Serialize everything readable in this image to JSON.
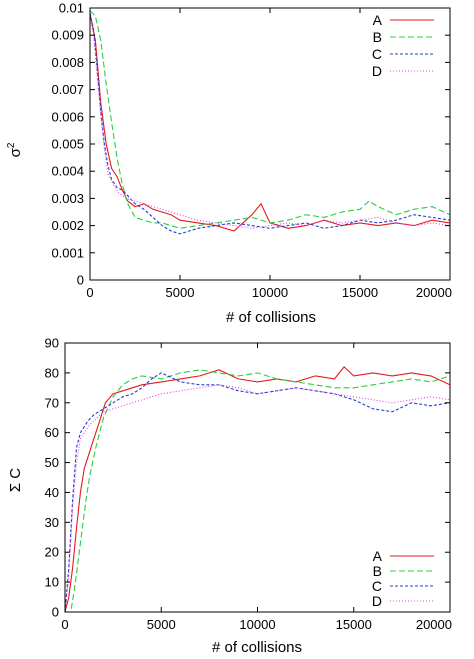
{
  "chart_data": [
    {
      "type": "line",
      "xlabel": "# of collisions",
      "ylabel": "σ",
      "ylabel_sup": "2",
      "xlim": [
        0,
        20000
      ],
      "ylim": [
        0,
        0.01
      ],
      "xticks": [
        0,
        5000,
        10000,
        15000,
        20000
      ],
      "yticks": [
        0,
        0.001,
        0.002,
        0.003,
        0.004,
        0.005,
        0.006,
        0.007,
        0.008,
        0.009,
        0.01
      ],
      "ytick_labels": [
        "0",
        "0.001",
        "0.002",
        "0.003",
        "0.004",
        "0.005",
        "0.006",
        "0.007",
        "0.008",
        "0.009",
        "0.01"
      ],
      "legend_position": "top-right",
      "series": [
        {
          "name": "A",
          "color": "#e41a1c",
          "dash": "solid",
          "x": [
            0,
            300,
            600,
            900,
            1200,
            1500,
            1800,
            2100,
            2500,
            3000,
            3500,
            4000,
            4500,
            5000,
            6000,
            7000,
            8000,
            9000,
            9500,
            10000,
            11000,
            12000,
            13000,
            14000,
            15000,
            16000,
            17000,
            18000,
            19000,
            20000
          ],
          "y": [
            0.0098,
            0.0088,
            0.0065,
            0.005,
            0.0041,
            0.0038,
            0.0033,
            0.0029,
            0.0027,
            0.0028,
            0.0026,
            0.0025,
            0.0024,
            0.0022,
            0.0021,
            0.002,
            0.0018,
            0.0024,
            0.0028,
            0.0021,
            0.0019,
            0.002,
            0.0022,
            0.002,
            0.0021,
            0.002,
            0.0021,
            0.002,
            0.0022,
            0.0021
          ]
        },
        {
          "name": "B",
          "color": "#2ecc40",
          "dash": "long",
          "x": [
            0,
            300,
            600,
            900,
            1200,
            1500,
            1800,
            2100,
            2500,
            3000,
            3500,
            4000,
            5000,
            6000,
            7000,
            8000,
            9000,
            10000,
            11000,
            12000,
            13000,
            14000,
            15000,
            15500,
            16000,
            17000,
            18000,
            19000,
            20000
          ],
          "y": [
            0.0099,
            0.0097,
            0.0088,
            0.0072,
            0.0058,
            0.0045,
            0.0035,
            0.0028,
            0.0023,
            0.0022,
            0.0021,
            0.0021,
            0.0019,
            0.002,
            0.0021,
            0.0022,
            0.0023,
            0.0021,
            0.0022,
            0.0024,
            0.0023,
            0.0025,
            0.0026,
            0.0029,
            0.0027,
            0.0024,
            0.0026,
            0.0027,
            0.0024
          ]
        },
        {
          "name": "C",
          "color": "#1f3fd0",
          "dash": "short",
          "x": [
            0,
            200,
            400,
            600,
            800,
            1000,
            1200,
            1500,
            1800,
            2100,
            2500,
            3000,
            3500,
            4000,
            4500,
            5000,
            6000,
            7000,
            8000,
            9000,
            10000,
            11000,
            12000,
            13000,
            14000,
            15000,
            16000,
            17000,
            18000,
            19000,
            20000
          ],
          "y": [
            0.0098,
            0.0092,
            0.0078,
            0.0062,
            0.005,
            0.0042,
            0.0037,
            0.0034,
            0.0033,
            0.0031,
            0.0028,
            0.0026,
            0.0023,
            0.002,
            0.0018,
            0.0017,
            0.0019,
            0.002,
            0.0021,
            0.002,
            0.0019,
            0.002,
            0.0021,
            0.0019,
            0.002,
            0.0022,
            0.0021,
            0.0022,
            0.0024,
            0.0023,
            0.0022
          ]
        },
        {
          "name": "D",
          "color": "#e040e0",
          "dash": "dot",
          "x": [
            0,
            200,
            400,
            600,
            800,
            1000,
            1300,
            1600,
            2000,
            2500,
            3000,
            3500,
            4000,
            4500,
            5000,
            6000,
            7000,
            8000,
            9000,
            10000,
            11000,
            12000,
            13000,
            14000,
            15000,
            16000,
            17000,
            18000,
            19000,
            20000
          ],
          "y": [
            0.0097,
            0.009,
            0.0075,
            0.006,
            0.0048,
            0.0039,
            0.0035,
            0.0032,
            0.003,
            0.0029,
            0.0028,
            0.0027,
            0.0026,
            0.0025,
            0.0024,
            0.0022,
            0.0021,
            0.002,
            0.0019,
            0.002,
            0.0021,
            0.002,
            0.0022,
            0.0021,
            0.0022,
            0.0023,
            0.0021,
            0.002,
            0.0021,
            0.002
          ]
        }
      ]
    },
    {
      "type": "line",
      "xlabel": "# of collisions",
      "ylabel": "Σ C",
      "xlim": [
        0,
        20000
      ],
      "ylim": [
        0,
        90
      ],
      "xticks": [
        0,
        5000,
        10000,
        15000,
        20000
      ],
      "yticks": [
        0,
        10,
        20,
        30,
        40,
        50,
        60,
        70,
        80,
        90
      ],
      "legend_position": "bottom-right",
      "series": [
        {
          "name": "A",
          "color": "#e41a1c",
          "dash": "solid",
          "x": [
            0,
            200,
            400,
            600,
            800,
            1000,
            1200,
            1500,
            1800,
            2100,
            2500,
            3000,
            3500,
            4000,
            5000,
            6000,
            7000,
            8000,
            9000,
            10000,
            11000,
            12000,
            13000,
            14000,
            14500,
            15000,
            16000,
            17000,
            18000,
            19000,
            20000
          ],
          "y": [
            0,
            5,
            15,
            28,
            40,
            48,
            52,
            58,
            64,
            70,
            73,
            74,
            75,
            76,
            77,
            78,
            79,
            81,
            78,
            77,
            78,
            77,
            79,
            78,
            82,
            79,
            80,
            79,
            80,
            79,
            76
          ]
        },
        {
          "name": "B",
          "color": "#2ecc40",
          "dash": "long",
          "x": [
            0,
            300,
            500,
            700,
            900,
            1100,
            1300,
            1600,
            2000,
            2500,
            3000,
            3500,
            4000,
            5000,
            6000,
            7000,
            8000,
            9000,
            10000,
            11000,
            12000,
            13000,
            14000,
            15000,
            16000,
            17000,
            18000,
            19000,
            20000
          ],
          "y": [
            0,
            0,
            8,
            18,
            28,
            38,
            46,
            55,
            65,
            72,
            76,
            78,
            79,
            78,
            80,
            81,
            80,
            79,
            80,
            78,
            77,
            76,
            75,
            75,
            76,
            77,
            78,
            77,
            79
          ]
        },
        {
          "name": "C",
          "color": "#1f3fd0",
          "dash": "short",
          "x": [
            0,
            200,
            400,
            600,
            800,
            1000,
            1200,
            1500,
            2000,
            2500,
            3000,
            3500,
            4000,
            4500,
            5000,
            6000,
            7000,
            8000,
            9000,
            10000,
            11000,
            12000,
            13000,
            14000,
            15000,
            16000,
            17000,
            18000,
            19000,
            20000
          ],
          "y": [
            0,
            15,
            38,
            55,
            60,
            62,
            64,
            66,
            68,
            70,
            72,
            73,
            75,
            78,
            80,
            77,
            76,
            76,
            74,
            73,
            74,
            75,
            74,
            73,
            71,
            68,
            67,
            70,
            69,
            70
          ]
        },
        {
          "name": "D",
          "color": "#e040e0",
          "dash": "dot",
          "x": [
            0,
            200,
            400,
            600,
            800,
            1000,
            1200,
            1500,
            2000,
            2500,
            3000,
            3500,
            4000,
            5000,
            6000,
            7000,
            8000,
            9000,
            10000,
            11000,
            12000,
            13000,
            14000,
            15000,
            16000,
            17000,
            18000,
            19000,
            20000
          ],
          "y": [
            0,
            12,
            35,
            50,
            58,
            60,
            62,
            64,
            67,
            68,
            69,
            70,
            71,
            73,
            74,
            75,
            76,
            75,
            73,
            74,
            75,
            74,
            73,
            72,
            71,
            70,
            71,
            72,
            71
          ]
        }
      ]
    }
  ]
}
